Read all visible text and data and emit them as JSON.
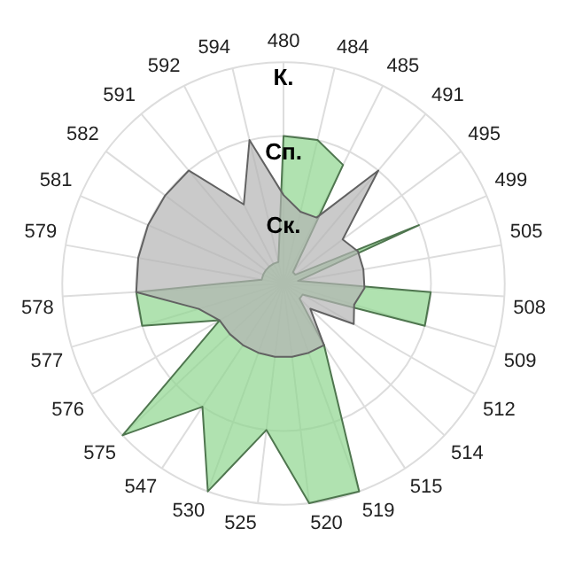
{
  "chart_data": {
    "type": "radar",
    "categories": [
      "480",
      "484",
      "485",
      "491",
      "495",
      "499",
      "505",
      "508",
      "509",
      "512",
      "514",
      "515",
      "519",
      "520",
      "525",
      "530",
      "547",
      "575",
      "576",
      "577",
      "578",
      "579",
      "581",
      "582",
      "591",
      "592",
      "594"
    ],
    "ylim": [
      0,
      3
    ],
    "yticks": [
      {
        "value": 1,
        "label": "Ск."
      },
      {
        "value": 2,
        "label": "Сп."
      },
      {
        "value": 3,
        "label": "К."
      }
    ],
    "grid": true,
    "legend": false,
    "marker": "none",
    "series": [
      {
        "color": "#b3b3b3",
        "values": [
          1.2,
          1.0,
          1.0,
          2.0,
          1.0,
          1.1,
          1.1,
          1.1,
          1.0,
          1.1,
          0.5,
          1.0,
          1.0,
          1.0,
          1.0,
          1.0,
          1.0,
          1.0,
          1.0,
          1.2,
          2.0,
          2.0,
          2.0,
          2.0,
          2.0,
          1.2,
          2.0
        ]
      },
      {
        "color": "#8fd68f",
        "values": [
          2.0,
          2.0,
          1.8,
          0.2,
          0.2,
          2.0,
          0.2,
          2.0,
          2.0,
          0.3,
          0.3,
          1.0,
          3.0,
          3.0,
          2.0,
          3.0,
          2.0,
          3.0,
          1.0,
          2.0,
          2.0,
          0.3,
          0.3,
          0.3,
          0.3,
          0.3,
          0.3
        ]
      }
    ]
  }
}
